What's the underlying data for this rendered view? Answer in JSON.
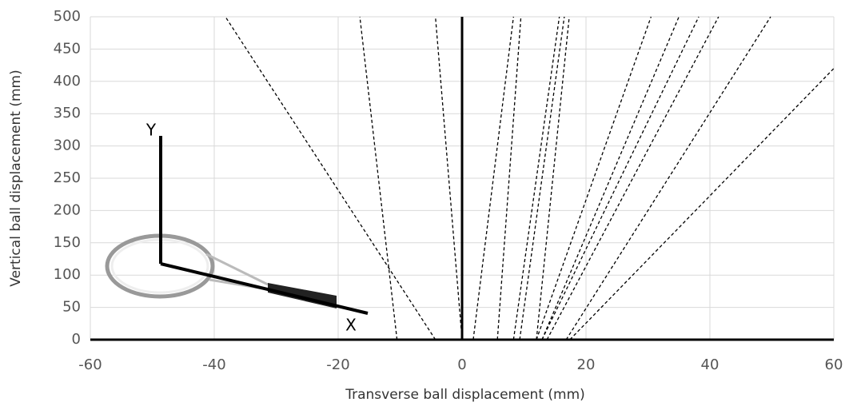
{
  "chart_data": {
    "type": "line",
    "xlabel": "Transverse ball displacement (mm)",
    "ylabel": "Vertical ball displacement (mm)",
    "annotations": [
      "Y",
      "X"
    ],
    "xlim": [
      -60,
      60
    ],
    "ylim": [
      0,
      500
    ],
    "xticks": [
      -60,
      -40,
      -20,
      0,
      20,
      40,
      60
    ],
    "yticks": [
      0,
      50,
      100,
      150,
      200,
      250,
      300,
      350,
      400,
      450,
      500
    ],
    "grid": true,
    "line_style": "dashed",
    "series": [
      {
        "color": "#000000",
        "x": [
          -4.3,
          -38.2
        ],
        "values": [
          0,
          500
        ]
      },
      {
        "color": "#000000",
        "x": [
          -10.5,
          -16.5
        ],
        "values": [
          0,
          500
        ]
      },
      {
        "color": "#000000",
        "x": [
          0,
          -4.3
        ],
        "values": [
          0,
          500
        ]
      },
      {
        "color": "#000000",
        "x": [
          1.8,
          8.3
        ],
        "values": [
          0,
          500
        ]
      },
      {
        "color": "#000000",
        "x": [
          5.7,
          9.5
        ],
        "values": [
          0,
          500
        ]
      },
      {
        "color": "#000000",
        "x": [
          8.3,
          15.7
        ],
        "values": [
          0,
          500
        ]
      },
      {
        "color": "#000000",
        "x": [
          9.3,
          16.5
        ],
        "values": [
          0,
          500
        ]
      },
      {
        "color": "#000000",
        "x": [
          12.0,
          17.3
        ],
        "values": [
          0,
          500
        ]
      },
      {
        "color": "#000000",
        "x": [
          12.0,
          30.5
        ],
        "values": [
          0,
          500
        ]
      },
      {
        "color": "#000000",
        "x": [
          12.9,
          35
        ],
        "values": [
          0,
          500
        ]
      },
      {
        "color": "#000000",
        "x": [
          12.9,
          38.2
        ],
        "values": [
          0,
          500
        ]
      },
      {
        "color": "#000000",
        "x": [
          13.7,
          41.4
        ],
        "values": [
          0,
          500
        ]
      },
      {
        "color": "#000000",
        "x": [
          16.8,
          49.8
        ],
        "values": [
          0,
          500
        ]
      },
      {
        "color": "#000000",
        "x": [
          17.4,
          60
        ],
        "values": [
          0,
          420
        ]
      }
    ]
  }
}
